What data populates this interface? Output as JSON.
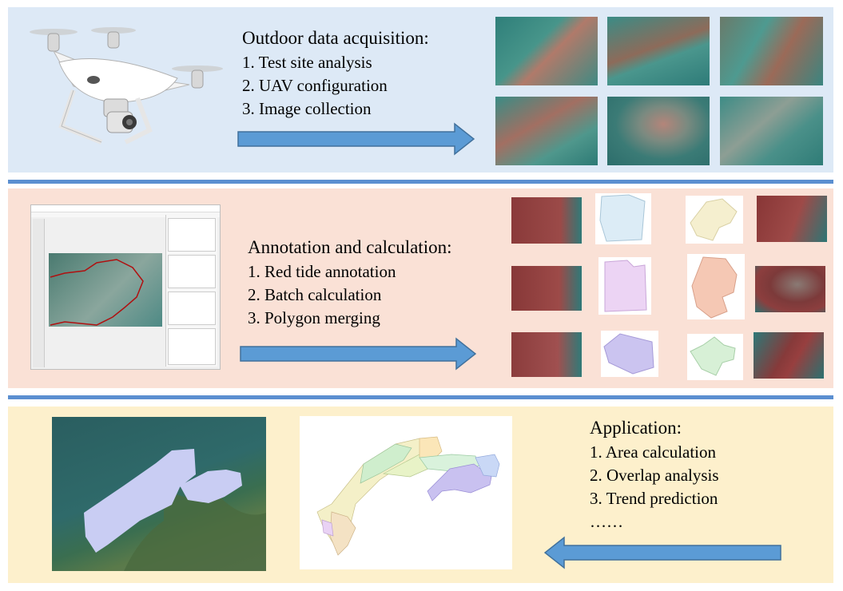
{
  "panels": {
    "acquisition": {
      "title": "Outdoor data acquisition:",
      "items": [
        "1. Test site analysis",
        "2. UAV configuration",
        "3. Image collection"
      ]
    },
    "annotation": {
      "title": "Annotation and calculation:",
      "items": [
        "1. Red tide annotation",
        "2. Batch calculation",
        "3. Polygon merging"
      ]
    },
    "application": {
      "title": "Application:",
      "items": [
        "1. Area calculation",
        "2. Overlap analysis",
        "3. Trend prediction",
        "……"
      ]
    }
  },
  "colors": {
    "panel1_bg": "#dde9f6",
    "panel2_bg": "#fae1d6",
    "panel3_bg": "#fdf0cc",
    "separator": "#5b8fd0",
    "arrow": "#5b9bd5"
  },
  "icons": [
    "drone-image",
    "aerial-photo",
    "annotation-software-screenshot",
    "polygon-mask",
    "merged-polygon-map"
  ]
}
